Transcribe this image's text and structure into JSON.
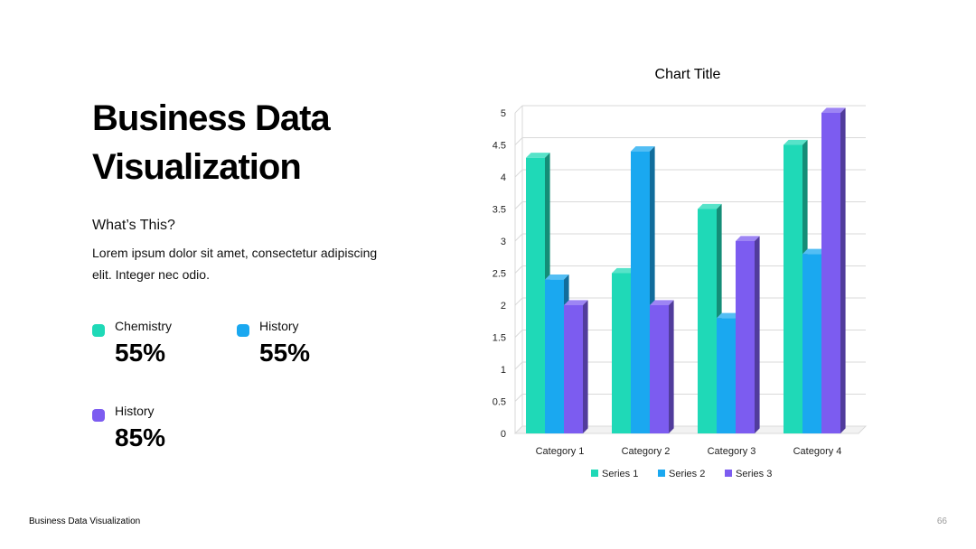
{
  "slide": {
    "title": "Business Data Visualization",
    "subheading": "What’s This?",
    "body": "Lorem ipsum dolor sit amet, consectetur adipiscing elit. Integer nec odio.",
    "footer_left": "Business Data Visualization",
    "page_number": "66"
  },
  "stats": [
    {
      "label": "Chemistry",
      "value": "55%",
      "color": "#1fd9b7"
    },
    {
      "label": "History",
      "value": "55%",
      "color": "#1aa8f0"
    },
    {
      "label": "History",
      "value": "85%",
      "color": "#7c5cf0"
    }
  ],
  "chart_data": {
    "type": "bar",
    "title": "Chart Title",
    "categories": [
      "Category 1",
      "Category 2",
      "Category 3",
      "Category 4"
    ],
    "series": [
      {
        "name": "Series 1",
        "values": [
          4.3,
          2.5,
          3.5,
          4.5
        ],
        "color": "#1fd9b7"
      },
      {
        "name": "Series 2",
        "values": [
          2.4,
          4.4,
          1.8,
          2.8
        ],
        "color": "#1aa8f0"
      },
      {
        "name": "Series 3",
        "values": [
          2.0,
          2.0,
          3.0,
          5.0
        ],
        "color": "#7c5cf0"
      }
    ],
    "ylim": [
      0,
      5
    ],
    "yticks": [
      "0",
      "0.5",
      "1",
      "1.5",
      "2",
      "2.5",
      "3",
      "3.5",
      "4",
      "4.5",
      "5"
    ],
    "grid": true,
    "legend": "bottom"
  }
}
